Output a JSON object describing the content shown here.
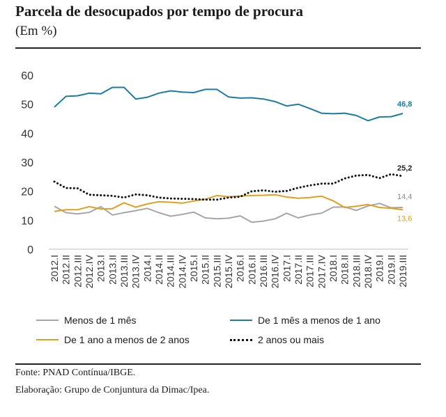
{
  "title": "Parcela de desocupados por tempo de procura",
  "subtitle": "(Em %)",
  "source": "Fonte: PNAD Contínua/IBGE.",
  "credit": "Elaboração: Grupo de Conjuntura da Dimac/Ipea.",
  "chart_data": {
    "type": "line",
    "ylim": [
      0,
      60
    ],
    "yticks": [
      "0",
      "10",
      "20",
      "30",
      "40",
      "50",
      "60"
    ],
    "categories": [
      "2012.I",
      "2012.II",
      "2012.III",
      "2012.IV",
      "2013.I",
      "2013.II",
      "2013.III",
      "2013.IV",
      "2014.I",
      "2014.II",
      "2014.III",
      "2014.IV",
      "2015.I",
      "2015.II",
      "2015.III",
      "2015.IV",
      "2016.I",
      "2016.II",
      "2016.III",
      "2016.IV",
      "2017.I",
      "2017.II",
      "2017.III",
      "2017.IV",
      "2018.I",
      "2018.II",
      "2018.III",
      "2018.IV",
      "2019.I",
      "2019.II",
      "2019.III"
    ],
    "series": [
      {
        "name": "Menos de 1 mês",
        "color": "#a6a6a6",
        "style": "solid",
        "values": [
          14.8,
          12.6,
          12.2,
          12.7,
          14.7,
          11.8,
          12.6,
          13.3,
          14.1,
          12.6,
          11.4,
          12.0,
          12.8,
          10.8,
          10.5,
          10.7,
          11.5,
          9.3,
          9.7,
          10.5,
          12.4,
          10.8,
          11.8,
          12.4,
          14.5,
          14.6,
          13.4,
          14.9,
          15.8,
          14.3,
          14.4
        ],
        "end_label": "14,4"
      },
      {
        "name": "De 1 mês a menos de 1 ano",
        "color": "#1b7ba3",
        "style": "solid",
        "values": [
          49.0,
          52.7,
          52.9,
          53.8,
          53.6,
          55.8,
          55.8,
          51.8,
          52.4,
          53.8,
          54.6,
          54.2,
          54.0,
          55.1,
          55.1,
          52.5,
          52.1,
          52.2,
          51.8,
          50.9,
          49.4,
          50.0,
          48.5,
          46.9,
          46.7,
          46.9,
          46.1,
          44.3,
          45.6,
          45.7,
          46.8
        ],
        "end_label": "46,8"
      },
      {
        "name": "De 1 ano a menos de 2 anos",
        "color": "#e0a01f",
        "style": "solid",
        "values": [
          13.0,
          13.6,
          13.6,
          14.7,
          13.9,
          14.0,
          16.0,
          14.5,
          15.6,
          16.4,
          16.2,
          15.9,
          16.6,
          17.2,
          18.5,
          18.1,
          18.3,
          18.5,
          18.6,
          18.8,
          18.0,
          17.6,
          17.8,
          18.3,
          16.7,
          14.4,
          14.8,
          15.4,
          14.4,
          14.1,
          13.6
        ],
        "end_label": "13,6"
      },
      {
        "name": "2 anos ou mais",
        "color": "#111111",
        "style": "dotted",
        "values": [
          23.3,
          21.1,
          21.0,
          18.8,
          18.6,
          18.4,
          17.8,
          18.9,
          18.6,
          17.8,
          17.5,
          17.4,
          17.3,
          17.1,
          17.1,
          17.8,
          18.1,
          20.0,
          20.3,
          19.8,
          20.1,
          21.2,
          22.0,
          22.6,
          22.6,
          24.4,
          25.4,
          25.6,
          24.5,
          25.9,
          25.2
        ],
        "end_label": "25,2"
      }
    ],
    "legend": "bottom"
  }
}
